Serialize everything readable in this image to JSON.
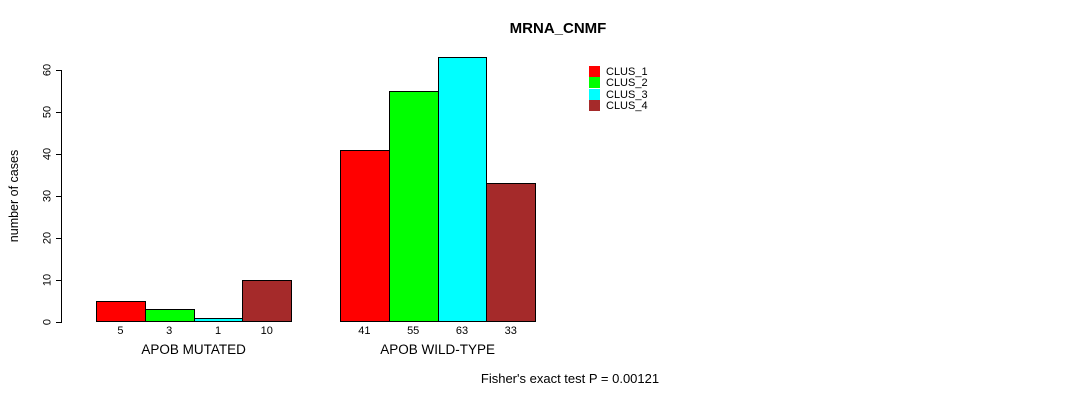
{
  "chart_data": {
    "type": "bar",
    "title": "MRNA_CNMF",
    "xlabel": "",
    "ylabel": "number of cases",
    "ylim": [
      0,
      60
    ],
    "yticks": [
      0,
      10,
      20,
      30,
      40,
      50,
      60
    ],
    "grid": false,
    "legend_position": "top-right-inside",
    "categories": [
      "APOB MUTATED",
      "APOB WILD-TYPE"
    ],
    "series": [
      {
        "name": "CLUS_1",
        "color": "#ff0000",
        "values": [
          5,
          41
        ]
      },
      {
        "name": "CLUS_2",
        "color": "#00ff00",
        "values": [
          3,
          55
        ]
      },
      {
        "name": "CLUS_3",
        "color": "#00ffff",
        "values": [
          1,
          63
        ]
      },
      {
        "name": "CLUS_4",
        "color": "#a52a2a",
        "values": [
          10,
          33
        ]
      }
    ],
    "bar_value_labels": {
      "APOB MUTATED": [
        5,
        3,
        1,
        10
      ],
      "APOB WILD-TYPE": [
        41,
        55,
        63,
        33
      ]
    },
    "annotation": "Fisher's exact test P = 0.00121"
  },
  "colors": {
    "bar_border": "#000000",
    "axis": "#000000",
    "text": "#000000",
    "background": "#ffffff"
  }
}
